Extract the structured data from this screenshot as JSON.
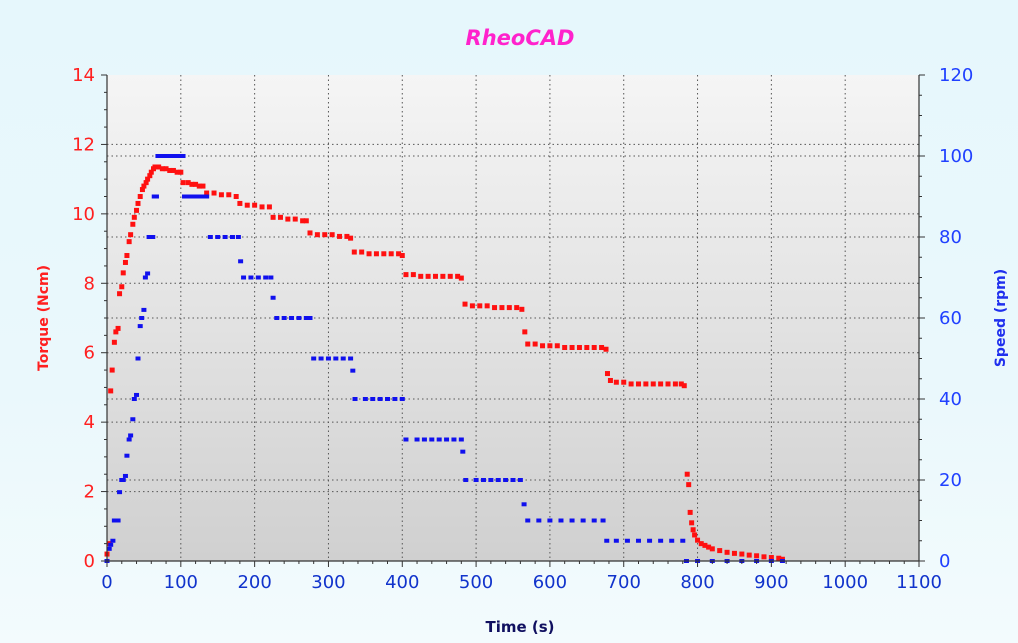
{
  "chart_data": {
    "type": "scatter",
    "title": "RheoCAD",
    "xlabel": "Time (s)",
    "ylabel_left": "Torque (Ncm)",
    "ylabel_right": "Speed  (rpm)",
    "xlim": [
      0,
      1100
    ],
    "ylim_left": [
      0,
      14
    ],
    "ylim_right": [
      0,
      120
    ],
    "x_ticks": [
      0,
      100,
      200,
      300,
      400,
      500,
      600,
      700,
      800,
      900,
      1000,
      1100
    ],
    "y_ticks_left": [
      0,
      2,
      4,
      6,
      8,
      10,
      12,
      14
    ],
    "y_ticks_right": [
      0,
      20,
      40,
      60,
      80,
      100,
      120
    ],
    "grid": true,
    "colors": {
      "torque": "#ff1010",
      "speed": "#1010ee",
      "title": "#ff22cc"
    },
    "series": [
      {
        "axis": "left",
        "color": "#ff1010",
        "points": [
          [
            0,
            0.2
          ],
          [
            3,
            0.5
          ],
          [
            5,
            4.9
          ],
          [
            7,
            5.5
          ],
          [
            10,
            6.3
          ],
          [
            12,
            6.6
          ],
          [
            15,
            6.7
          ],
          [
            17,
            7.7
          ],
          [
            20,
            7.9
          ],
          [
            22,
            8.3
          ],
          [
            25,
            8.6
          ],
          [
            27,
            8.8
          ],
          [
            30,
            9.2
          ],
          [
            32,
            9.4
          ],
          [
            35,
            9.7
          ],
          [
            37,
            9.9
          ],
          [
            40,
            10.1
          ],
          [
            42,
            10.3
          ],
          [
            45,
            10.5
          ],
          [
            48,
            10.7
          ],
          [
            50,
            10.8
          ],
          [
            53,
            10.9
          ],
          [
            55,
            11.0
          ],
          [
            58,
            11.1
          ],
          [
            60,
            11.2
          ],
          [
            63,
            11.3
          ],
          [
            65,
            11.35
          ],
          [
            70,
            11.35
          ],
          [
            75,
            11.3
          ],
          [
            80,
            11.3
          ],
          [
            85,
            11.25
          ],
          [
            90,
            11.25
          ],
          [
            95,
            11.2
          ],
          [
            100,
            11.2
          ],
          [
            103,
            10.9
          ],
          [
            110,
            10.9
          ],
          [
            115,
            10.85
          ],
          [
            120,
            10.85
          ],
          [
            125,
            10.8
          ],
          [
            130,
            10.8
          ],
          [
            135,
            10.6
          ],
          [
            145,
            10.6
          ],
          [
            155,
            10.55
          ],
          [
            165,
            10.55
          ],
          [
            175,
            10.5
          ],
          [
            180,
            10.3
          ],
          [
            190,
            10.25
          ],
          [
            200,
            10.25
          ],
          [
            210,
            10.2
          ],
          [
            220,
            10.2
          ],
          [
            225,
            9.9
          ],
          [
            235,
            9.9
          ],
          [
            245,
            9.85
          ],
          [
            255,
            9.85
          ],
          [
            265,
            9.8
          ],
          [
            270,
            9.8
          ],
          [
            275,
            9.45
          ],
          [
            285,
            9.4
          ],
          [
            295,
            9.4
          ],
          [
            305,
            9.4
          ],
          [
            315,
            9.35
          ],
          [
            325,
            9.35
          ],
          [
            330,
            9.3
          ],
          [
            335,
            8.9
          ],
          [
            345,
            8.9
          ],
          [
            355,
            8.85
          ],
          [
            365,
            8.85
          ],
          [
            375,
            8.85
          ],
          [
            385,
            8.85
          ],
          [
            395,
            8.85
          ],
          [
            400,
            8.8
          ],
          [
            405,
            8.25
          ],
          [
            415,
            8.25
          ],
          [
            425,
            8.2
          ],
          [
            435,
            8.2
          ],
          [
            445,
            8.2
          ],
          [
            455,
            8.2
          ],
          [
            465,
            8.2
          ],
          [
            475,
            8.2
          ],
          [
            480,
            8.15
          ],
          [
            485,
            7.4
          ],
          [
            495,
            7.35
          ],
          [
            505,
            7.35
          ],
          [
            515,
            7.35
          ],
          [
            525,
            7.3
          ],
          [
            535,
            7.3
          ],
          [
            545,
            7.3
          ],
          [
            555,
            7.3
          ],
          [
            562,
            7.25
          ],
          [
            566,
            6.6
          ],
          [
            570,
            6.25
          ],
          [
            580,
            6.25
          ],
          [
            590,
            6.2
          ],
          [
            600,
            6.2
          ],
          [
            610,
            6.2
          ],
          [
            620,
            6.15
          ],
          [
            630,
            6.15
          ],
          [
            640,
            6.15
          ],
          [
            650,
            6.15
          ],
          [
            660,
            6.15
          ],
          [
            670,
            6.15
          ],
          [
            676,
            6.1
          ],
          [
            678,
            5.4
          ],
          [
            682,
            5.2
          ],
          [
            690,
            5.15
          ],
          [
            700,
            5.15
          ],
          [
            710,
            5.1
          ],
          [
            720,
            5.1
          ],
          [
            730,
            5.1
          ],
          [
            740,
            5.1
          ],
          [
            750,
            5.1
          ],
          [
            760,
            5.1
          ],
          [
            770,
            5.1
          ],
          [
            778,
            5.1
          ],
          [
            782,
            5.05
          ],
          [
            786,
            2.5
          ],
          [
            788,
            2.2
          ],
          [
            790,
            1.4
          ],
          [
            792,
            1.1
          ],
          [
            794,
            0.9
          ],
          [
            796,
            0.75
          ],
          [
            800,
            0.6
          ],
          [
            805,
            0.5
          ],
          [
            810,
            0.45
          ],
          [
            815,
            0.4
          ],
          [
            820,
            0.35
          ],
          [
            830,
            0.3
          ],
          [
            840,
            0.25
          ],
          [
            850,
            0.22
          ],
          [
            860,
            0.2
          ],
          [
            870,
            0.17
          ],
          [
            880,
            0.15
          ],
          [
            890,
            0.12
          ],
          [
            900,
            0.1
          ],
          [
            910,
            0.08
          ],
          [
            915,
            0.05
          ]
        ]
      },
      {
        "axis": "right",
        "color": "#1010ee",
        "points": [
          [
            0,
            0
          ],
          [
            3,
            3
          ],
          [
            5,
            4
          ],
          [
            8,
            5
          ],
          [
            10,
            10
          ],
          [
            12,
            10
          ],
          [
            15,
            10
          ],
          [
            17,
            17
          ],
          [
            20,
            20
          ],
          [
            22,
            20
          ],
          [
            25,
            21
          ],
          [
            27,
            26
          ],
          [
            30,
            30
          ],
          [
            32,
            31
          ],
          [
            35,
            35
          ],
          [
            37,
            40
          ],
          [
            40,
            41
          ],
          [
            42,
            50
          ],
          [
            45,
            58
          ],
          [
            47,
            60
          ],
          [
            50,
            62
          ],
          [
            52,
            70
          ],
          [
            55,
            71
          ],
          [
            57,
            80
          ],
          [
            60,
            80
          ],
          [
            62,
            80
          ],
          [
            64,
            90
          ],
          [
            67,
            90
          ],
          [
            69,
            100
          ],
          [
            72,
            100
          ],
          [
            75,
            100
          ],
          [
            80,
            100
          ],
          [
            85,
            100
          ],
          [
            90,
            100
          ],
          [
            95,
            100
          ],
          [
            100,
            100
          ],
          [
            103,
            100
          ],
          [
            105,
            90
          ],
          [
            110,
            90
          ],
          [
            115,
            90
          ],
          [
            120,
            90
          ],
          [
            125,
            90
          ],
          [
            130,
            90
          ],
          [
            135,
            90
          ],
          [
            140,
            80
          ],
          [
            150,
            80
          ],
          [
            160,
            80
          ],
          [
            170,
            80
          ],
          [
            178,
            80
          ],
          [
            181,
            74
          ],
          [
            185,
            70
          ],
          [
            195,
            70
          ],
          [
            205,
            70
          ],
          [
            215,
            70
          ],
          [
            222,
            70
          ],
          [
            225,
            65
          ],
          [
            230,
            60
          ],
          [
            240,
            60
          ],
          [
            250,
            60
          ],
          [
            260,
            60
          ],
          [
            270,
            60
          ],
          [
            275,
            60
          ],
          [
            280,
            50
          ],
          [
            290,
            50
          ],
          [
            300,
            50
          ],
          [
            310,
            50
          ],
          [
            320,
            50
          ],
          [
            330,
            50
          ],
          [
            333,
            47
          ],
          [
            336,
            40
          ],
          [
            350,
            40
          ],
          [
            360,
            40
          ],
          [
            370,
            40
          ],
          [
            380,
            40
          ],
          [
            390,
            40
          ],
          [
            400,
            40
          ],
          [
            405,
            30
          ],
          [
            420,
            30
          ],
          [
            430,
            30
          ],
          [
            440,
            30
          ],
          [
            450,
            30
          ],
          [
            460,
            30
          ],
          [
            470,
            30
          ],
          [
            480,
            30
          ],
          [
            482,
            27
          ],
          [
            486,
            20
          ],
          [
            500,
            20
          ],
          [
            510,
            20
          ],
          [
            520,
            20
          ],
          [
            530,
            20
          ],
          [
            540,
            20
          ],
          [
            550,
            20
          ],
          [
            560,
            20
          ],
          [
            565,
            14
          ],
          [
            570,
            10
          ],
          [
            585,
            10
          ],
          [
            600,
            10
          ],
          [
            615,
            10
          ],
          [
            630,
            10
          ],
          [
            645,
            10
          ],
          [
            660,
            10
          ],
          [
            672,
            10
          ],
          [
            677,
            5
          ],
          [
            690,
            5
          ],
          [
            705,
            5
          ],
          [
            720,
            5
          ],
          [
            735,
            5
          ],
          [
            750,
            5
          ],
          [
            765,
            5
          ],
          [
            780,
            5
          ],
          [
            785,
            0
          ],
          [
            800,
            0
          ],
          [
            820,
            0
          ],
          [
            840,
            0
          ],
          [
            860,
            0
          ],
          [
            880,
            0
          ],
          [
            900,
            0
          ],
          [
            915,
            0
          ]
        ]
      }
    ]
  }
}
